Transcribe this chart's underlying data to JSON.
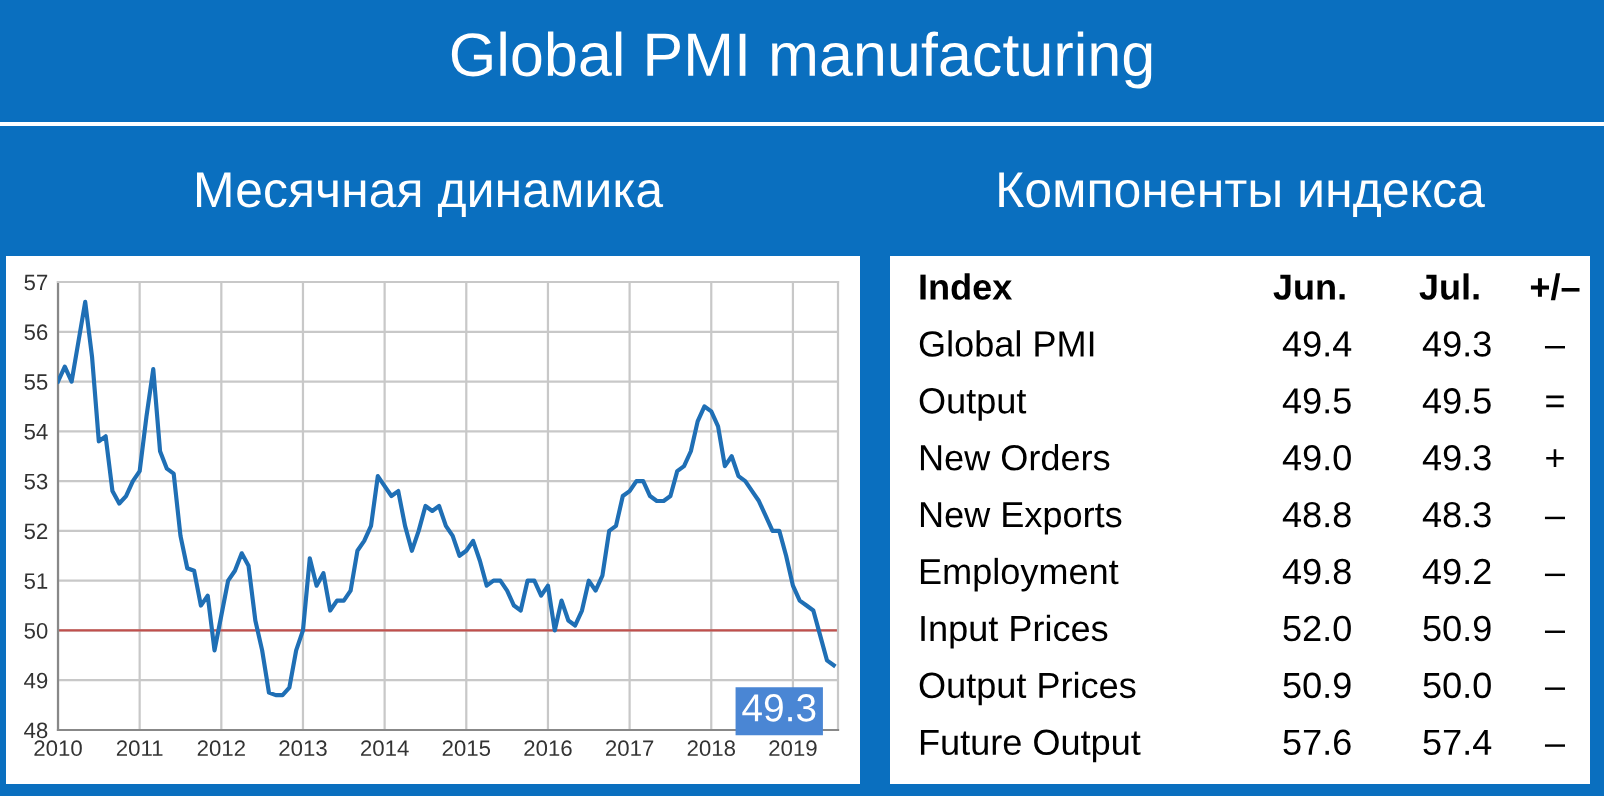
{
  "chart_data": [
    {
      "type": "line",
      "title": "Global PMI manufacturing",
      "subtitle": "Месячная динамика",
      "x": [
        "2010-01",
        "2010-02",
        "2010-03",
        "2010-04",
        "2010-05",
        "2010-06",
        "2010-07",
        "2010-08",
        "2010-09",
        "2010-10",
        "2010-11",
        "2010-12",
        "2011-01",
        "2011-02",
        "2011-03",
        "2011-04",
        "2011-05",
        "2011-06",
        "2011-07",
        "2011-08",
        "2011-09",
        "2011-10",
        "2011-11",
        "2011-12",
        "2012-01",
        "2012-02",
        "2012-03",
        "2012-04",
        "2012-05",
        "2012-06",
        "2012-07",
        "2012-08",
        "2012-09",
        "2012-10",
        "2012-11",
        "2012-12",
        "2013-01",
        "2013-02",
        "2013-03",
        "2013-04",
        "2013-05",
        "2013-06",
        "2013-07",
        "2013-08",
        "2013-09",
        "2013-10",
        "2013-11",
        "2013-12",
        "2014-01",
        "2014-02",
        "2014-03",
        "2014-04",
        "2014-05",
        "2014-06",
        "2014-07",
        "2014-08",
        "2014-09",
        "2014-10",
        "2014-11",
        "2014-12",
        "2015-01",
        "2015-02",
        "2015-03",
        "2015-04",
        "2015-05",
        "2015-06",
        "2015-07",
        "2015-08",
        "2015-09",
        "2015-10",
        "2015-11",
        "2015-12",
        "2016-01",
        "2016-02",
        "2016-03",
        "2016-04",
        "2016-05",
        "2016-06",
        "2016-07",
        "2016-08",
        "2016-09",
        "2016-10",
        "2016-11",
        "2016-12",
        "2017-01",
        "2017-02",
        "2017-03",
        "2017-04",
        "2017-05",
        "2017-06",
        "2017-07",
        "2017-08",
        "2017-09",
        "2017-10",
        "2017-11",
        "2017-12",
        "2018-01",
        "2018-02",
        "2018-03",
        "2018-04",
        "2018-05",
        "2018-06",
        "2018-07",
        "2018-08",
        "2018-09",
        "2018-10",
        "2018-11",
        "2018-12",
        "2019-01",
        "2019-02",
        "2019-03",
        "2019-04",
        "2019-05",
        "2019-06",
        "2019-07"
      ],
      "series": [
        {
          "color": "#1f6fb5",
          "values": [
            55.0,
            55.3,
            55.0,
            55.8,
            56.6,
            55.5,
            53.8,
            53.9,
            52.8,
            52.55,
            52.7,
            53.0,
            53.2,
            54.3,
            55.25,
            53.6,
            53.25,
            53.15,
            51.9,
            51.25,
            51.2,
            50.5,
            50.7,
            49.6,
            50.3,
            51.0,
            51.2,
            51.55,
            51.3,
            50.2,
            49.6,
            48.75,
            48.7,
            48.7,
            48.85,
            49.6,
            50.0,
            51.45,
            50.9,
            51.15,
            50.4,
            50.6,
            50.6,
            50.8,
            51.6,
            51.8,
            52.1,
            53.1,
            52.9,
            52.7,
            52.8,
            52.1,
            51.6,
            52.0,
            52.5,
            52.4,
            52.5,
            52.1,
            51.9,
            51.5,
            51.6,
            51.8,
            51.4,
            50.9,
            51.0,
            51.0,
            50.8,
            50.5,
            50.4,
            51.0,
            51.0,
            50.7,
            50.9,
            50.0,
            50.6,
            50.2,
            50.1,
            50.4,
            51.0,
            50.8,
            51.1,
            52.0,
            52.1,
            52.7,
            52.8,
            53.0,
            53.0,
            52.7,
            52.6,
            52.6,
            52.7,
            53.2,
            53.3,
            53.6,
            54.2,
            54.5,
            54.4,
            54.1,
            53.3,
            53.5,
            53.1,
            53.0,
            52.8,
            52.6,
            52.3,
            52.0,
            52.0,
            51.5,
            50.9,
            50.6,
            50.5,
            50.4,
            49.9,
            49.4,
            49.3
          ]
        }
      ],
      "xlim": [
        "2010-01",
        "2019-07-20"
      ],
      "xticks": [
        {
          "value": "2010",
          "label": "2010"
        },
        {
          "value": "2011",
          "label": "2011"
        },
        {
          "value": "2012",
          "label": "2012"
        },
        {
          "value": "2013",
          "label": "2013"
        },
        {
          "value": "2014",
          "label": "2014"
        },
        {
          "value": "2015",
          "label": "2015"
        },
        {
          "value": "2016",
          "label": "2016"
        },
        {
          "value": "2017",
          "label": "2017"
        },
        {
          "value": "2018",
          "label": "2018"
        },
        {
          "value": "2019",
          "label": "2019"
        }
      ],
      "ylim": [
        48,
        57
      ],
      "yticks": [
        48,
        49,
        50,
        51,
        52,
        53,
        54,
        55,
        56,
        57
      ],
      "grid": true,
      "marker": "none",
      "line_style": "solid",
      "ref_lines": [
        {
          "axis": "y",
          "value": 50,
          "color": "#c0504d"
        }
      ],
      "annotations": [
        {
          "text": "49.3",
          "x": "2019-07",
          "y": 49.3
        }
      ]
    },
    {
      "type": "other",
      "title": "Компоненты индекса",
      "legend_title": "Index",
      "categories": [
        "Global PMI",
        "Output",
        "New Orders",
        "New Exports",
        "Employment",
        "Input Prices",
        "Output Prices",
        "Future Output"
      ],
      "series": [
        {
          "name": "Jun.",
          "values": [
            49.4,
            49.5,
            49.0,
            48.8,
            49.8,
            52.0,
            50.9,
            57.6
          ],
          "value_labels": [
            "49.4",
            "49.5",
            "49.0",
            "48.8",
            "49.8",
            "52.0",
            "50.9",
            "57.6"
          ]
        },
        {
          "name": "Jul.",
          "values": [
            49.3,
            49.5,
            49.3,
            48.3,
            49.2,
            50.9,
            50.0,
            57.4
          ],
          "value_labels": [
            "49.3",
            "49.5",
            "49.3",
            "48.3",
            "49.2",
            "50.9",
            "50.0",
            "57.4"
          ]
        },
        {
          "name": "+/–",
          "values": [
            null,
            null,
            null,
            null,
            null,
            null,
            null,
            null
          ],
          "value_labels": [
            "–",
            "=",
            "+",
            "–",
            "–",
            "–",
            "–",
            "–"
          ]
        }
      ]
    }
  ]
}
